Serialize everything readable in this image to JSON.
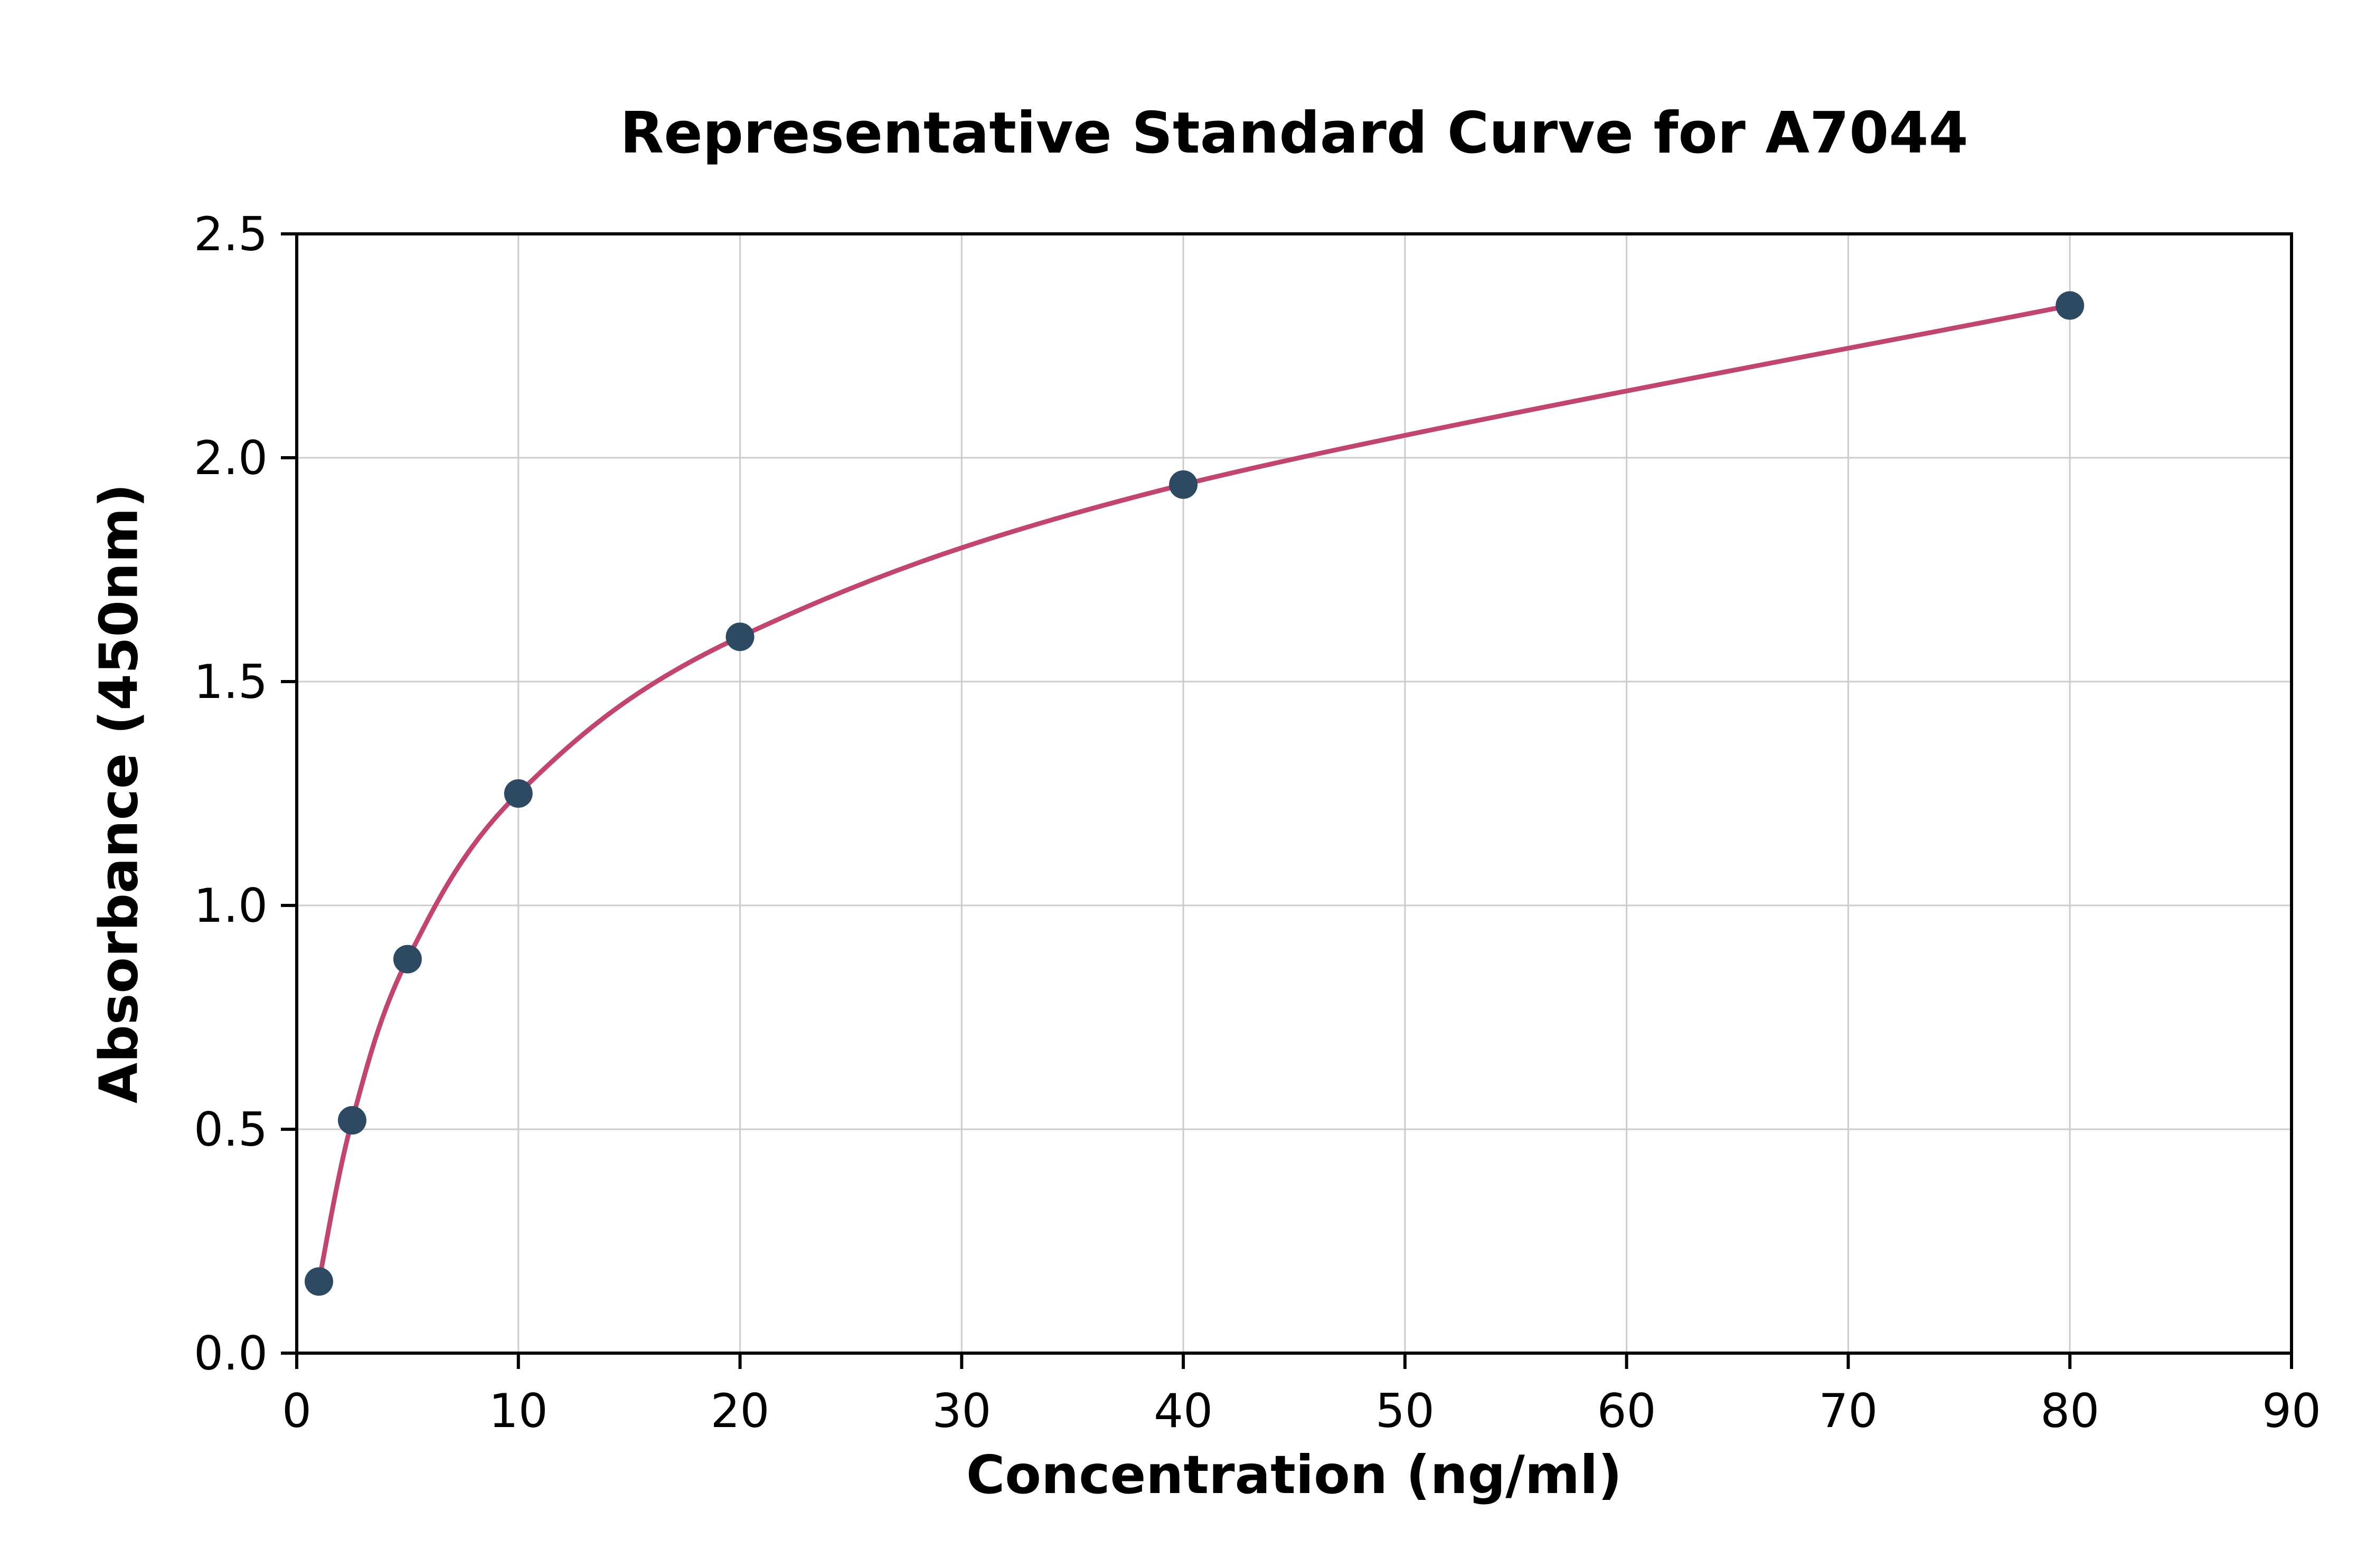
{
  "chart_data": {
    "type": "scatter",
    "title": "Representative Standard Curve for A7044",
    "xlabel": "Concentration (ng/ml)",
    "ylabel": "Absorbance (450nm)",
    "x": [
      1,
      2.5,
      5,
      10,
      20,
      40,
      80
    ],
    "y": [
      0.16,
      0.52,
      0.88,
      1.25,
      1.6,
      1.94,
      2.34
    ],
    "xlim": [
      0,
      90
    ],
    "ylim": [
      0,
      2.5
    ],
    "xticks": [
      0,
      10,
      20,
      30,
      40,
      50,
      60,
      70,
      80,
      90
    ],
    "xtick_labels": [
      "0",
      "10",
      "20",
      "30",
      "40",
      "50",
      "60",
      "70",
      "80",
      "90"
    ],
    "yticks": [
      0,
      0.5,
      1.0,
      1.5,
      2.0,
      2.5
    ],
    "ytick_labels": [
      "0.0",
      "0.5",
      "1.0",
      "1.5",
      "2.0",
      "2.5"
    ],
    "grid": true,
    "legend_position": "none",
    "curve_color": "#c0456f",
    "point_color": "#2e4a63",
    "grid_color": "#cccccc",
    "axis_color": "#000000",
    "background_color": "#ffffff"
  }
}
